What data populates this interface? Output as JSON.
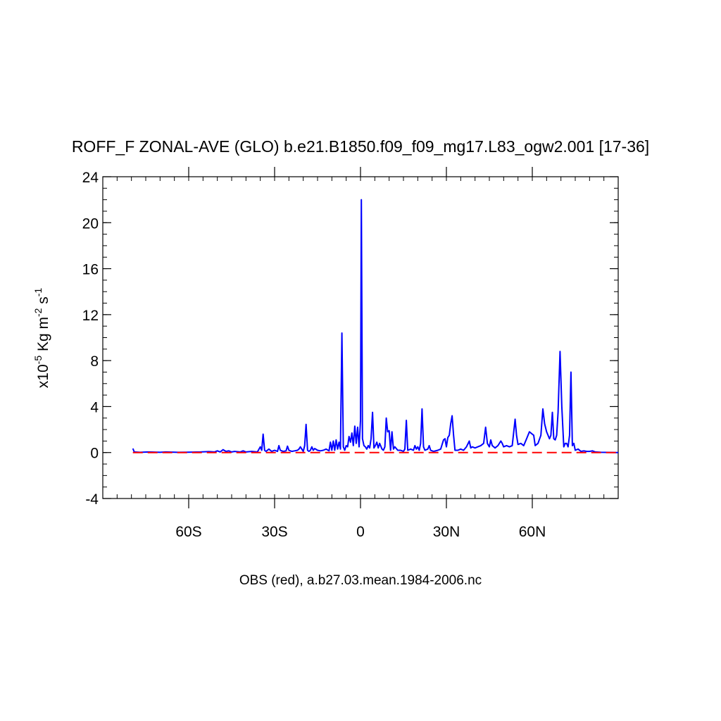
{
  "chart_data": {
    "type": "line",
    "title": "ROFF_F ZONAL-AVE (GLO) b.e21.B1850.f09_f09_mg17.L83_ogw2.001 [17-36]",
    "xlabel": "OBS (red), a.b27.03.mean.1984-2006.nc",
    "ylabel": {
      "prefix": "x10",
      "exp1": "-5",
      "unit": " Kg m",
      "exp2": "-2",
      "unit2": " s",
      "exp3": "-1"
    },
    "xlim": [
      -90,
      90
    ],
    "ylim": [
      -4,
      24
    ],
    "x_ticks": [
      {
        "value": -60,
        "label": "60S"
      },
      {
        "value": -30,
        "label": "30S"
      },
      {
        "value": 0,
        "label": "0"
      },
      {
        "value": 30,
        "label": "30N"
      },
      {
        "value": 60,
        "label": "60N"
      }
    ],
    "y_ticks": [
      {
        "value": -4,
        "label": "-4"
      },
      {
        "value": 0,
        "label": "0"
      },
      {
        "value": 4,
        "label": "4"
      },
      {
        "value": 8,
        "label": "8"
      },
      {
        "value": 12,
        "label": "12"
      },
      {
        "value": 16,
        "label": "16"
      },
      {
        "value": 20,
        "label": "20"
      },
      {
        "value": 24,
        "label": "24"
      }
    ],
    "series": [
      {
        "color": "#0000ff",
        "style": "solid",
        "points": [
          [
            -79.5,
            0.35
          ],
          [
            -79,
            0.05
          ],
          [
            -77,
            0.02
          ],
          [
            -74,
            0.05
          ],
          [
            -70,
            0.02
          ],
          [
            -68,
            0.05
          ],
          [
            -64,
            0.02
          ],
          [
            -60,
            0.03
          ],
          [
            -56,
            0.05
          ],
          [
            -53,
            0.08
          ],
          [
            -51,
            0.05
          ],
          [
            -50,
            0.15
          ],
          [
            -49,
            0.05
          ],
          [
            -48,
            0.25
          ],
          [
            -47,
            0.1
          ],
          [
            -46,
            0.15
          ],
          [
            -45,
            0.05
          ],
          [
            -44,
            0.1
          ],
          [
            -42,
            0.05
          ],
          [
            -41,
            0.15
          ],
          [
            -40,
            0.05
          ],
          [
            -38,
            0.1
          ],
          [
            -36,
            0.05
          ],
          [
            -35,
            0.5
          ],
          [
            -34.5,
            0.2
          ],
          [
            -34,
            1.6
          ],
          [
            -33.5,
            0.2
          ],
          [
            -33,
            0.1
          ],
          [
            -32,
            0.3
          ],
          [
            -31,
            0.1
          ],
          [
            -30,
            0.2
          ],
          [
            -29,
            0.1
          ],
          [
            -28.5,
            0.6
          ],
          [
            -28,
            0.2
          ],
          [
            -27,
            0.1
          ],
          [
            -26,
            0.15
          ],
          [
            -25.5,
            0.55
          ],
          [
            -25,
            0.2
          ],
          [
            -24,
            0.1
          ],
          [
            -23,
            0.15
          ],
          [
            -22,
            0.2
          ],
          [
            -21.5,
            0.3
          ],
          [
            -21,
            0.5
          ],
          [
            -20.5,
            0.3
          ],
          [
            -20,
            0.1
          ],
          [
            -19.5,
            0.6
          ],
          [
            -19,
            2.45
          ],
          [
            -18.5,
            0.2
          ],
          [
            -18,
            0.1
          ],
          [
            -17.5,
            0.2
          ],
          [
            -17,
            0.5
          ],
          [
            -16.5,
            0.2
          ],
          [
            -16,
            0.35
          ],
          [
            -15,
            0.2
          ],
          [
            -14,
            0.15
          ],
          [
            -13,
            0.2
          ],
          [
            -12,
            0.3
          ],
          [
            -11,
            0.15
          ],
          [
            -10.5,
            0.9
          ],
          [
            -10,
            0.2
          ],
          [
            -9.5,
            1.0
          ],
          [
            -9,
            0.2
          ],
          [
            -8.5,
            1.1
          ],
          [
            -8,
            0.3
          ],
          [
            -7.5,
            0.9
          ],
          [
            -7,
            0.3
          ],
          [
            -6.5,
            10.4
          ],
          [
            -6,
            0.5
          ],
          [
            -5.5,
            0.2
          ],
          [
            -5,
            0.6
          ],
          [
            -4.5,
            0.5
          ],
          [
            -4,
            1.4
          ],
          [
            -3.5,
            0.9
          ],
          [
            -3,
            1.7
          ],
          [
            -2.5,
            0.6
          ],
          [
            -2,
            2.3
          ],
          [
            -1.5,
            0.8
          ],
          [
            -1,
            2.2
          ],
          [
            -0.5,
            0.5
          ],
          [
            0,
            2.8
          ],
          [
            0.3,
            22.0
          ],
          [
            0.7,
            1.2
          ],
          [
            1.2,
            0.6
          ],
          [
            1.7,
            0.5
          ],
          [
            2.2,
            0.3
          ],
          [
            2.7,
            0.6
          ],
          [
            3.2,
            0.4
          ],
          [
            3.7,
            1.2
          ],
          [
            4.2,
            3.5
          ],
          [
            4.7,
            0.4
          ],
          [
            5.2,
            0.6
          ],
          [
            5.7,
            0.9
          ],
          [
            6.2,
            0.4
          ],
          [
            6.7,
            0.8
          ],
          [
            7.5,
            0.3
          ],
          [
            8,
            0.2
          ],
          [
            8.5,
            0.5
          ],
          [
            9,
            3.0
          ],
          [
            9.5,
            1.8
          ],
          [
            10,
            1.9
          ],
          [
            10.5,
            0.2
          ],
          [
            11,
            1.8
          ],
          [
            11.5,
            0.3
          ],
          [
            12,
            0.5
          ],
          [
            13,
            0.2
          ],
          [
            14,
            0.2
          ],
          [
            15,
            0.1
          ],
          [
            15.5,
            0.3
          ],
          [
            16,
            2.8
          ],
          [
            16.5,
            0.2
          ],
          [
            17.5,
            0.3
          ],
          [
            18.5,
            0.2
          ],
          [
            19,
            0.6
          ],
          [
            19.5,
            0.3
          ],
          [
            20,
            0.5
          ],
          [
            20.5,
            0.2
          ],
          [
            21,
            0.8
          ],
          [
            21.5,
            3.8
          ],
          [
            22,
            0.5
          ],
          [
            22.5,
            0.2
          ],
          [
            23.5,
            0.3
          ],
          [
            24,
            0.6
          ],
          [
            24.5,
            0.2
          ],
          [
            25.5,
            0.1
          ],
          [
            27,
            0.2
          ],
          [
            28,
            0.3
          ],
          [
            29,
            1.1
          ],
          [
            29.5,
            1.2
          ],
          [
            30,
            0.5
          ],
          [
            30.5,
            1.3
          ],
          [
            31,
            1.5
          ],
          [
            31.5,
            2.5
          ],
          [
            32,
            3.2
          ],
          [
            32.5,
            1.5
          ],
          [
            33,
            0.2
          ],
          [
            34,
            0.2
          ],
          [
            35,
            0.3
          ],
          [
            36,
            0.2
          ],
          [
            37,
            0.5
          ],
          [
            38,
            1.0
          ],
          [
            38.5,
            0.4
          ],
          [
            39,
            0.5
          ],
          [
            40,
            0.4
          ],
          [
            41,
            0.5
          ],
          [
            42,
            0.6
          ],
          [
            43,
            0.8
          ],
          [
            43.7,
            2.2
          ],
          [
            44.3,
            0.8
          ],
          [
            45,
            0.5
          ],
          [
            45.5,
            1.1
          ],
          [
            46,
            0.6
          ],
          [
            47,
            0.4
          ],
          [
            48,
            0.6
          ],
          [
            49,
            1.0
          ],
          [
            49.5,
            0.8
          ],
          [
            50,
            0.5
          ],
          [
            51,
            0.6
          ],
          [
            52,
            0.5
          ],
          [
            53,
            0.6
          ],
          [
            54,
            2.9
          ],
          [
            54.5,
            1.5
          ],
          [
            55,
            0.7
          ],
          [
            56,
            0.8
          ],
          [
            57,
            0.6
          ],
          [
            58,
            1.2
          ],
          [
            59,
            1.8
          ],
          [
            60,
            1.6
          ],
          [
            60.5,
            1.5
          ],
          [
            61,
            0.6
          ],
          [
            62,
            0.8
          ],
          [
            63,
            1.5
          ],
          [
            63.7,
            3.8
          ],
          [
            64.3,
            2.5
          ],
          [
            65,
            1.8
          ],
          [
            66,
            1.2
          ],
          [
            66.5,
            1.5
          ],
          [
            67,
            3.5
          ],
          [
            67.5,
            1.2
          ],
          [
            68,
            1.1
          ],
          [
            68.5,
            1.5
          ],
          [
            69,
            3.5
          ],
          [
            69.7,
            8.8
          ],
          [
            70.3,
            4.0
          ],
          [
            71,
            0.5
          ],
          [
            71.5,
            0.8
          ],
          [
            72,
            0.8
          ],
          [
            72.5,
            0.5
          ],
          [
            73,
            1.5
          ],
          [
            73.5,
            7.0
          ],
          [
            74,
            0.6
          ],
          [
            74.5,
            0.8
          ],
          [
            75,
            0.2
          ],
          [
            76,
            0.3
          ],
          [
            77,
            0.1
          ],
          [
            78,
            0.15
          ],
          [
            79,
            0.1
          ],
          [
            80,
            0.1
          ],
          [
            81,
            0.15
          ],
          [
            82,
            0.05
          ],
          [
            84,
            0.02
          ],
          [
            90,
            0.0
          ]
        ]
      },
      {
        "color": "#ff0000",
        "style": "dashed",
        "points": [
          [
            -79.5,
            0.0
          ],
          [
            90,
            0.0
          ]
        ]
      }
    ]
  }
}
